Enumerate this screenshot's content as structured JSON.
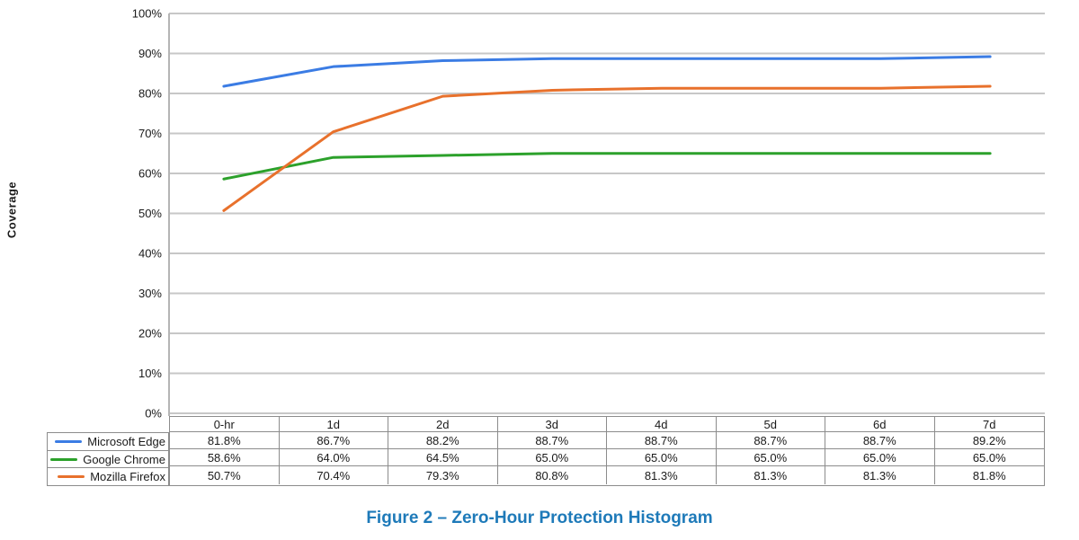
{
  "figure": {
    "caption": "Figure 2 – Zero-Hour Protection Histogram",
    "caption_color": "#1e7ab9"
  },
  "chart_data": {
    "type": "line",
    "title": "",
    "xlabel": "",
    "ylabel": "Coverage",
    "categories": [
      "0-hr",
      "1d",
      "2d",
      "3d",
      "4d",
      "5d",
      "6d",
      "7d"
    ],
    "series": [
      {
        "name": "Microsoft Edge",
        "color": "#3b7ce4",
        "values": [
          81.8,
          86.7,
          88.2,
          88.7,
          88.7,
          88.7,
          88.7,
          89.2
        ]
      },
      {
        "name": "Google Chrome",
        "color": "#2ca12b",
        "values": [
          58.6,
          64.0,
          64.5,
          65.0,
          65.0,
          65.0,
          65.0,
          65.0
        ]
      },
      {
        "name": "Mozilla Firefox",
        "color": "#e8712c",
        "values": [
          50.7,
          70.4,
          79.3,
          80.8,
          81.3,
          81.3,
          81.3,
          81.8
        ]
      }
    ],
    "ylim": [
      0,
      100
    ],
    "ytick_step": 10,
    "ytick_labels": [
      "0%",
      "10%",
      "20%",
      "30%",
      "40%",
      "50%",
      "60%",
      "70%",
      "80%",
      "90%",
      "100%"
    ],
    "value_format": "one-decimal-percent",
    "grid": "horizontal",
    "legend_position": "data-table-left",
    "data_table_shown": true
  },
  "colors": {
    "gridline": "#c7c7c7",
    "axis": "#b5b5b5",
    "table_border": "#8c8c8c",
    "text": "#1a1a1a"
  }
}
